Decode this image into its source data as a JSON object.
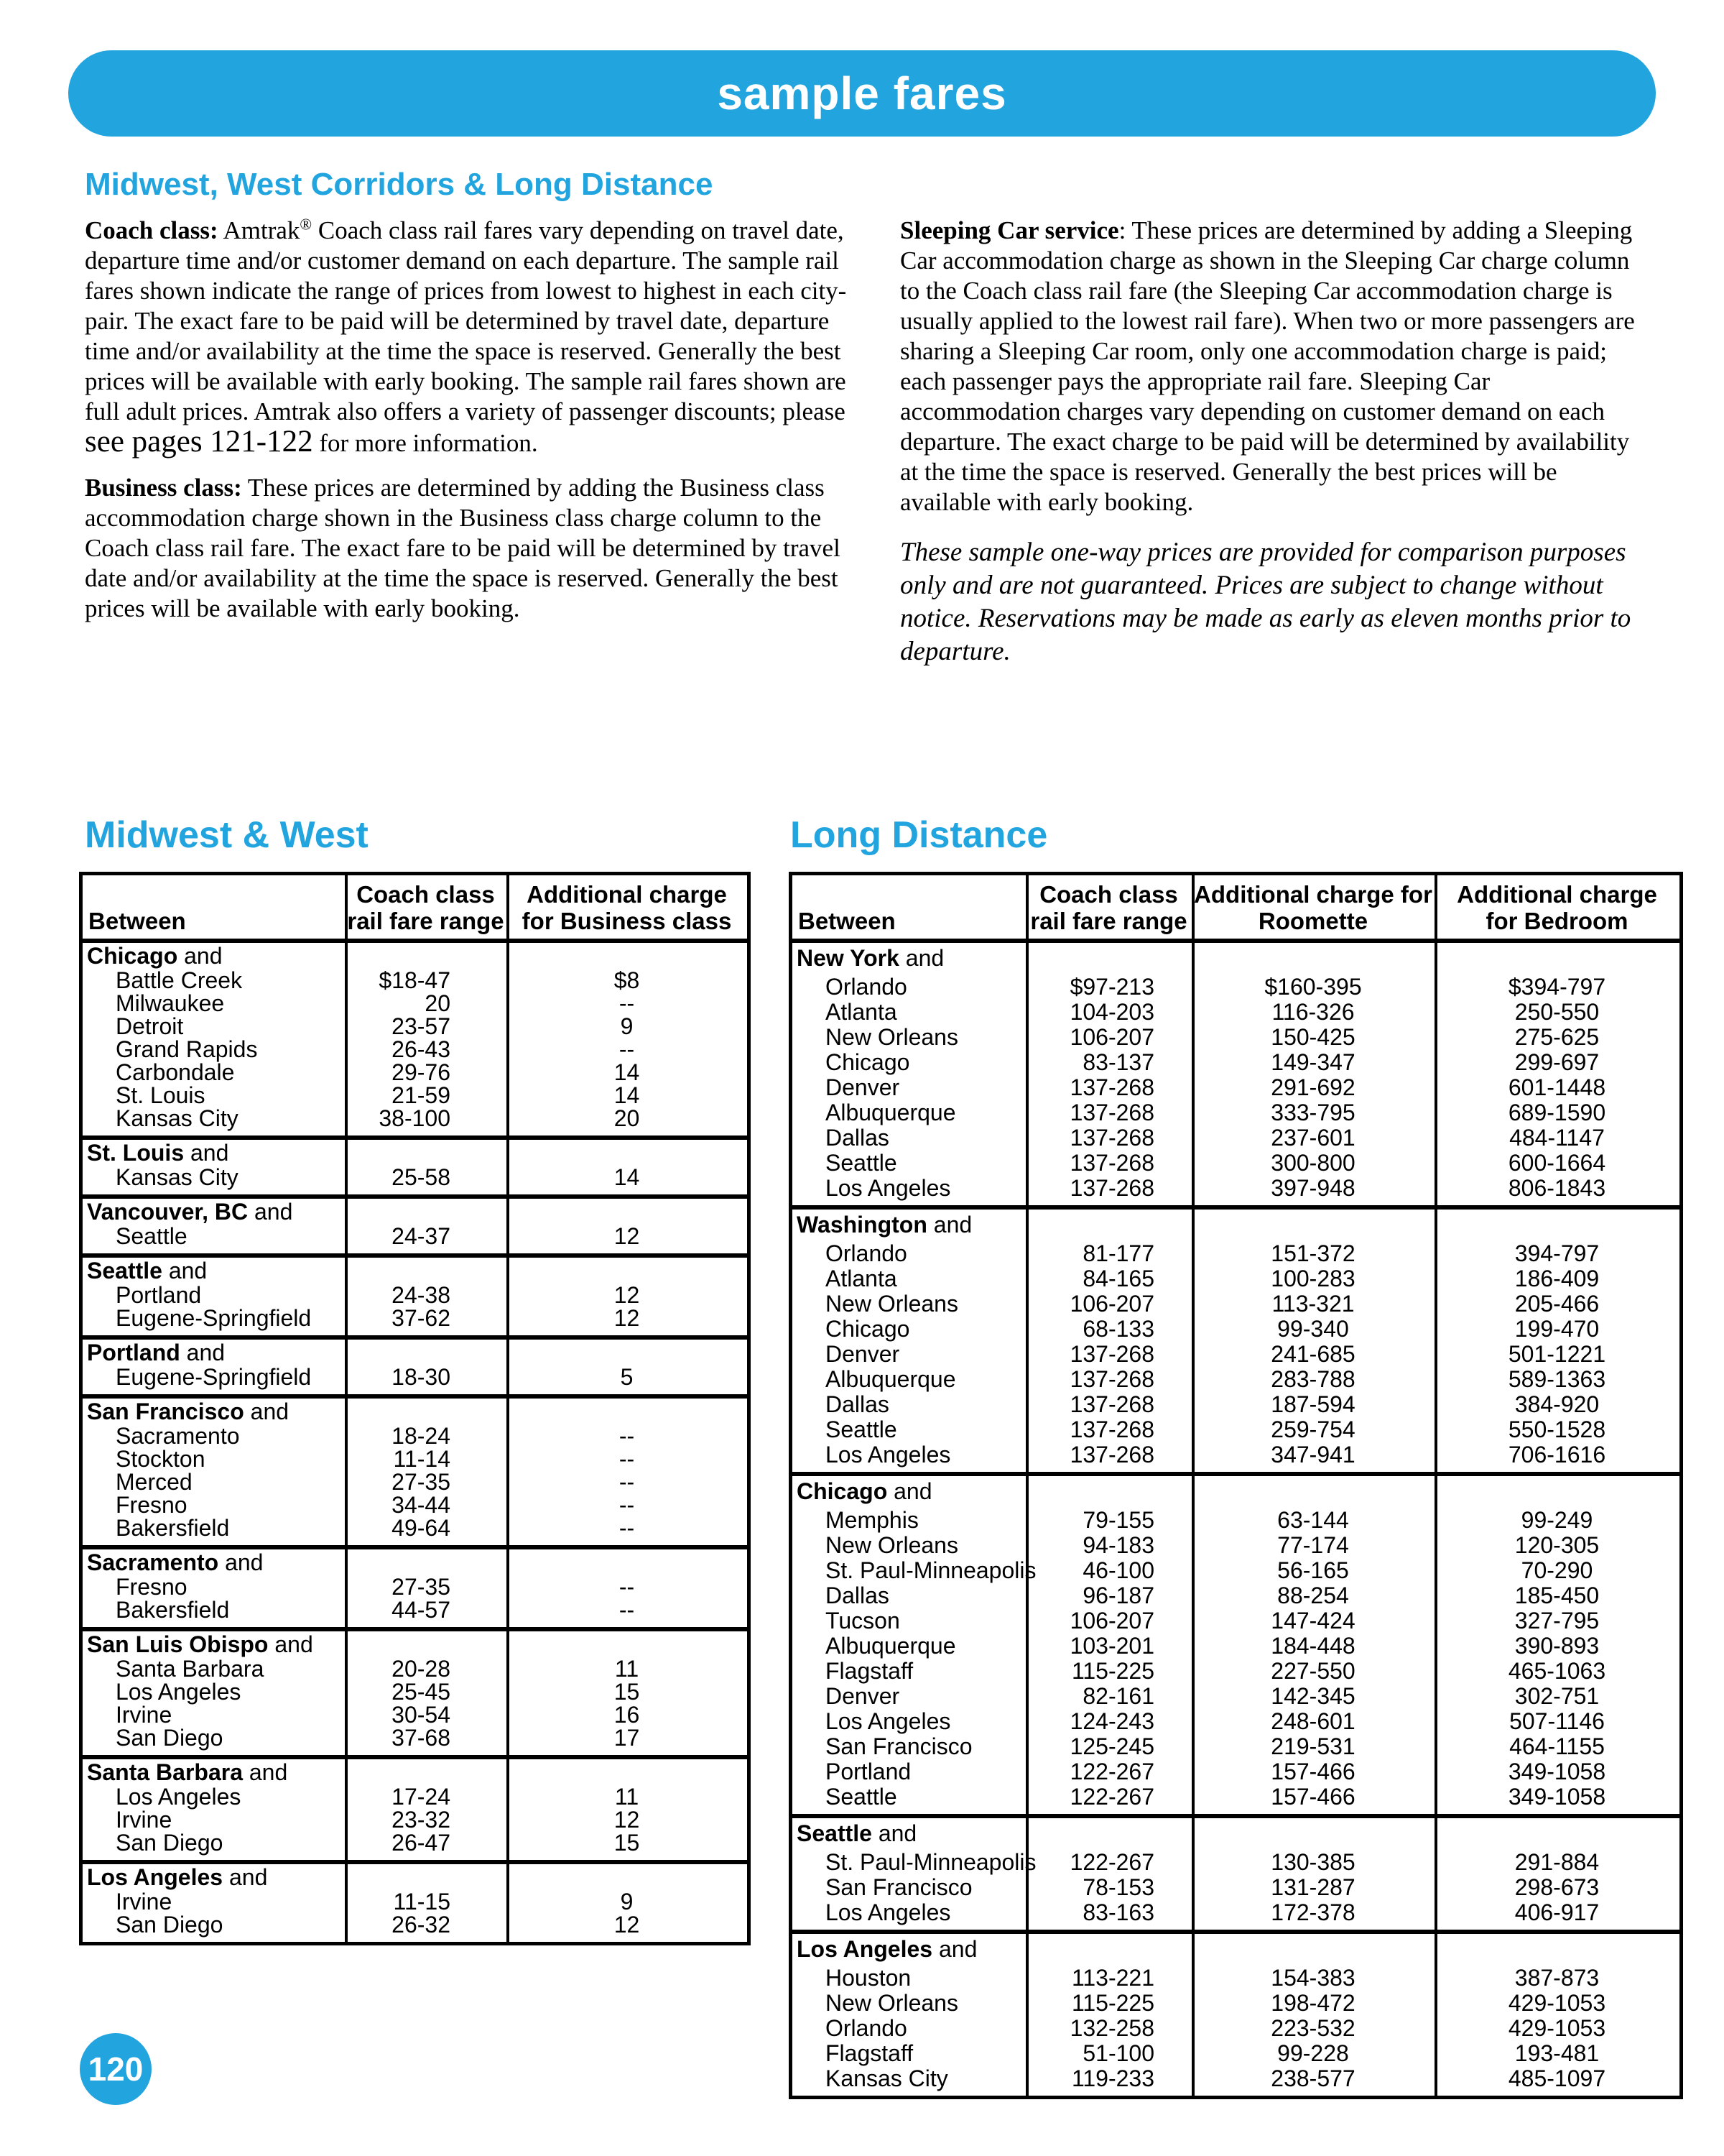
{
  "accent": "#22a5de",
  "banner": {
    "title": "sample fares"
  },
  "page_badge": "120",
  "heading": "Midwest, West Corridors & Long Distance",
  "intro": {
    "coach": {
      "lead": "Coach class:",
      "text1a": " Amtrak",
      "reg": "®",
      "text1b": " Coach class rail fares vary depending on travel date, departure time and/or customer demand on each departure. The sample rail fares shown indicate the range of prices from lowest to highest in each city-pair. The exact fare to be paid will be determined by travel date, departure time and/or availability at the time the space is reserved. Generally the best prices will be available with early booking. The sample rail fares shown are full adult prices. Amtrak also offers a variety of passenger discounts; please ",
      "pages_ref": "see pages 121-122",
      "text2": " for more information."
    },
    "business": {
      "lead": "Business class:",
      "text": " These prices are determined by adding the Business class accommodation charge shown in the Business class charge column to the Coach class rail fare. The exact fare to be paid will be determined by travel date and/or availability at the time the space is reserved. Generally the best prices will be available with early booking."
    },
    "sleeping": {
      "lead": "Sleeping Car service",
      "text": ": These prices are determined by adding a Sleeping Car accommodation charge as shown in the Sleeping Car charge column to the Coach class rail fare (the Sleeping Car accommodation charge is usually applied to the lowest rail fare). When two or more passengers are sharing a Sleeping Car room, only one accommodation charge is paid; each passenger pays the appropriate rail fare. Sleeping Car accommodation charges vary depending on customer demand on each departure. The exact charge to be paid will be determined by availability at the time the space is reserved. Generally the best prices will be available with early booking."
    },
    "note": "These sample one-way prices are provided for comparison purposes only and are not guaranteed. Prices are subject to change without notice. Reservations may be made as early as eleven months prior to departure."
  },
  "midwest_table": {
    "title": "Midwest & West",
    "and_word": "and",
    "headers": {
      "between": "Between",
      "coach": [
        "Coach class",
        "rail fare range"
      ],
      "business": [
        "Additional charge",
        "for Business class"
      ]
    },
    "sections": [
      {
        "group": "Chicago",
        "rows": [
          [
            "Battle Creek",
            "$18-47",
            "$8"
          ],
          [
            "Milwaukee",
            "20",
            "--"
          ],
          [
            "Detroit",
            "23-57",
            "9"
          ],
          [
            "Grand Rapids",
            "26-43",
            "--"
          ],
          [
            "Carbondale",
            "29-76",
            "14"
          ],
          [
            "St. Louis",
            "21-59",
            "14"
          ],
          [
            "Kansas City",
            "38-100",
            "20"
          ]
        ]
      },
      {
        "group": "St. Louis",
        "rows": [
          [
            "Kansas City",
            "25-58",
            "14"
          ]
        ]
      },
      {
        "group": "Vancouver, BC",
        "rows": [
          [
            "Seattle",
            "24-37",
            "12"
          ]
        ]
      },
      {
        "group": "Seattle",
        "rows": [
          [
            "Portland",
            "24-38",
            "12"
          ],
          [
            "Eugene-Springfield",
            "37-62",
            "12"
          ]
        ]
      },
      {
        "group": "Portland",
        "rows": [
          [
            "Eugene-Springfield",
            "18-30",
            "5"
          ]
        ]
      },
      {
        "group": "San Francisco",
        "rows": [
          [
            "Sacramento",
            "18-24",
            "--"
          ],
          [
            "Stockton",
            "11-14",
            "--"
          ],
          [
            "Merced",
            "27-35",
            "--"
          ],
          [
            "Fresno",
            "34-44",
            "--"
          ],
          [
            "Bakersfield",
            "49-64",
            "--"
          ]
        ]
      },
      {
        "group": "Sacramento",
        "rows": [
          [
            "Fresno",
            "27-35",
            "--"
          ],
          [
            "Bakersfield",
            "44-57",
            "--"
          ]
        ]
      },
      {
        "group": "San Luis Obispo",
        "rows": [
          [
            "Santa Barbara",
            "20-28",
            "11"
          ],
          [
            "Los Angeles",
            "25-45",
            "15"
          ],
          [
            "Irvine",
            "30-54",
            "16"
          ],
          [
            "San Diego",
            "37-68",
            "17"
          ]
        ]
      },
      {
        "group": "Santa Barbara",
        "rows": [
          [
            "Los Angeles",
            "17-24",
            "11"
          ],
          [
            "Irvine",
            "23-32",
            "12"
          ],
          [
            "San Diego",
            "26-47",
            "15"
          ]
        ]
      },
      {
        "group": "Los Angeles",
        "rows": [
          [
            "Irvine",
            "11-15",
            "9"
          ],
          [
            "San Diego",
            "26-32",
            "12"
          ]
        ]
      }
    ]
  },
  "long_table": {
    "title": "Long Distance",
    "and_word": "and",
    "headers": {
      "between": "Between",
      "coach": [
        "Coach class",
        "rail fare range"
      ],
      "roomette": [
        "Additional charge for",
        "Roomette"
      ],
      "bedroom": [
        "Additional charge",
        "for Bedroom"
      ]
    },
    "sections": [
      {
        "group": "New York",
        "rows": [
          [
            "Orlando",
            "$97-213",
            "$160-395",
            "$394-797"
          ],
          [
            "Atlanta",
            "104-203",
            "116-326",
            "250-550"
          ],
          [
            "New Orleans",
            "106-207",
            "150-425",
            "275-625"
          ],
          [
            "Chicago",
            "83-137",
            "149-347",
            "299-697"
          ],
          [
            "Denver",
            "137-268",
            "291-692",
            "601-1448"
          ],
          [
            "Albuquerque",
            "137-268",
            "333-795",
            "689-1590"
          ],
          [
            "Dallas",
            "137-268",
            "237-601",
            "484-1147"
          ],
          [
            "Seattle",
            "137-268",
            "300-800",
            "600-1664"
          ],
          [
            "Los Angeles",
            "137-268",
            "397-948",
            "806-1843"
          ]
        ]
      },
      {
        "group": "Washington",
        "rows": [
          [
            "Orlando",
            "81-177",
            "151-372",
            "394-797"
          ],
          [
            "Atlanta",
            "84-165",
            "100-283",
            "186-409"
          ],
          [
            "New Orleans",
            "106-207",
            "113-321",
            "205-466"
          ],
          [
            "Chicago",
            "68-133",
            "99-340",
            "199-470"
          ],
          [
            "Denver",
            "137-268",
            "241-685",
            "501-1221"
          ],
          [
            "Albuquerque",
            "137-268",
            "283-788",
            "589-1363"
          ],
          [
            "Dallas",
            "137-268",
            "187-594",
            "384-920"
          ],
          [
            "Seattle",
            "137-268",
            "259-754",
            "550-1528"
          ],
          [
            "Los Angeles",
            "137-268",
            "347-941",
            "706-1616"
          ]
        ]
      },
      {
        "group": "Chicago",
        "rows": [
          [
            "Memphis",
            "79-155",
            "63-144",
            "99-249"
          ],
          [
            "New Orleans",
            "94-183",
            "77-174",
            "120-305"
          ],
          [
            "St. Paul-Minneapolis",
            "46-100",
            "56-165",
            "70-290"
          ],
          [
            "Dallas",
            "96-187",
            "88-254",
            "185-450"
          ],
          [
            "Tucson",
            "106-207",
            "147-424",
            "327-795"
          ],
          [
            "Albuquerque",
            "103-201",
            "184-448",
            "390-893"
          ],
          [
            "Flagstaff",
            "115-225",
            "227-550",
            "465-1063"
          ],
          [
            "Denver",
            "82-161",
            "142-345",
            "302-751"
          ],
          [
            "Los Angeles",
            "124-243",
            "248-601",
            "507-1146"
          ],
          [
            "San Francisco",
            "125-245",
            "219-531",
            "464-1155"
          ],
          [
            "Portland",
            "122-267",
            "157-466",
            "349-1058"
          ],
          [
            "Seattle",
            "122-267",
            "157-466",
            "349-1058"
          ]
        ]
      },
      {
        "group": "Seattle",
        "rows": [
          [
            "St. Paul-Minneapolis",
            "122-267",
            "130-385",
            "291-884"
          ],
          [
            "San Francisco",
            "78-153",
            "131-287",
            "298-673"
          ],
          [
            "Los Angeles",
            "83-163",
            "172-378",
            "406-917"
          ]
        ]
      },
      {
        "group": "Los Angeles",
        "rows": [
          [
            "Houston",
            "113-221",
            "154-383",
            "387-873"
          ],
          [
            "New Orleans",
            "115-225",
            "198-472",
            "429-1053"
          ],
          [
            "Orlando",
            "132-258",
            "223-532",
            "429-1053"
          ],
          [
            "Flagstaff",
            "51-100",
            "99-228",
            "193-481"
          ],
          [
            "Kansas City",
            "119-233",
            "238-577",
            "485-1097"
          ]
        ]
      }
    ]
  }
}
